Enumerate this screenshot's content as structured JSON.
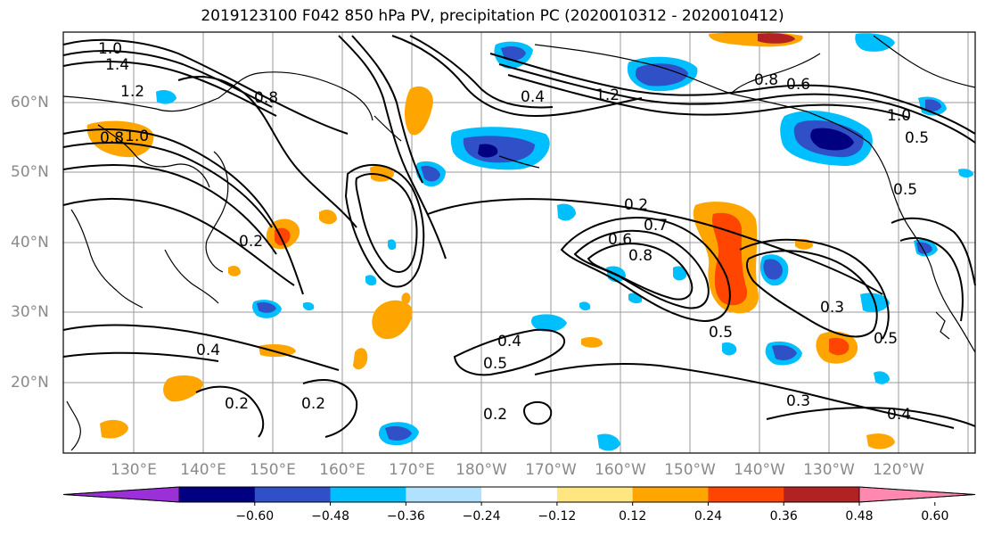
{
  "title": "2019123100 F042 850 hPa PV, precipitation PC (2020010312 - 2020010412)",
  "lat_labels": [
    "60°N",
    "50°N",
    "40°N",
    "30°N",
    "20°N"
  ],
  "lon_labels": [
    "130°E",
    "140°E",
    "150°E",
    "160°E",
    "170°E",
    "180°W",
    "170°W",
    "160°W",
    "150°W",
    "140°W",
    "130°W",
    "120°W"
  ],
  "colorbar": {
    "ticks": [
      "−0.60",
      "−0.48",
      "−0.36",
      "−0.24",
      "−0.12",
      "0.12",
      "0.24",
      "0.36",
      "0.48",
      "0.60"
    ],
    "colors": [
      "#9b30d9",
      "#000080",
      "#3050c8",
      "#00bfff",
      "#b0e2ff",
      "#ffffff",
      "#ffe680",
      "#ffa500",
      "#ff4500",
      "#b22222",
      "#ff88b0"
    ]
  },
  "contour_labels": [
    "1.0",
    "1.4",
    "1.2",
    "0.8",
    "1.0",
    "0.8",
    "0.4",
    "0.2",
    "0.4",
    "0.2",
    "0.5",
    "0.2",
    "0.2",
    "0.2",
    "0.6",
    "0.7",
    "0.8",
    "0.5",
    "0.3",
    "0.5",
    "0.3",
    "0.4",
    "0.4",
    "1.0",
    "0.5",
    "0.5",
    "0.8",
    "0.6",
    "1.2"
  ]
}
